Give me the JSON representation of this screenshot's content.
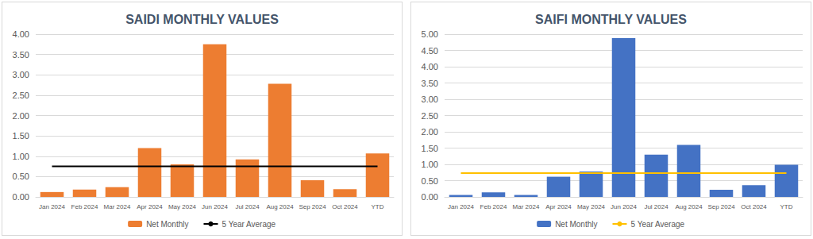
{
  "chart_data": [
    {
      "type": "bar",
      "title": "SAIDI MONTHLY VALUES",
      "categories": [
        "Jan 2024",
        "Feb 2024",
        "Mar 2024",
        "Apr 2024",
        "May 2024",
        "Jun 2024",
        "Jul 2024",
        "Aug 2024",
        "Sep 2024",
        "Oct 2024",
        "YTD"
      ],
      "series": [
        {
          "name": "Net Monthly",
          "type": "bar",
          "color": "#ed7d31",
          "values": [
            0.12,
            0.18,
            0.24,
            1.2,
            0.8,
            3.75,
            0.92,
            2.78,
            0.41,
            0.19,
            1.07
          ]
        },
        {
          "name": "5 Year Average",
          "type": "line",
          "color": "#000000",
          "values": [
            0.75,
            0.75,
            0.75,
            0.75,
            0.75,
            0.75,
            0.75,
            0.75,
            0.75,
            0.75,
            0.75
          ]
        }
      ],
      "ylim": [
        0,
        4
      ],
      "yticks": [
        {
          "value": 0,
          "label": "0.00"
        },
        {
          "value": 0.5,
          "label": "0.50"
        },
        {
          "value": 1,
          "label": "1.00"
        },
        {
          "value": 1.5,
          "label": "1.50"
        },
        {
          "value": 2,
          "label": "2.00"
        },
        {
          "value": 2.5,
          "label": "2.50"
        },
        {
          "value": 3,
          "label": "3.00"
        },
        {
          "value": 3.5,
          "label": "3.50"
        },
        {
          "value": 4,
          "label": "4.00"
        }
      ],
      "grid": true,
      "legend": "bottom"
    },
    {
      "type": "bar",
      "title": "SAIFI MONTHLY VALUES",
      "categories": [
        "Jan 2024",
        "Feb 2024",
        "Mar 2024",
        "Apr 2024",
        "May 2024",
        "Jun 2024",
        "Jul 2024",
        "Aug 2024",
        "Sep 2024",
        "Oct 2024",
        "YTD"
      ],
      "series": [
        {
          "name": "Net Monthly",
          "type": "bar",
          "color": "#4472c4",
          "values": [
            0.06,
            0.14,
            0.06,
            0.62,
            0.78,
            4.88,
            1.3,
            1.6,
            0.22,
            0.36,
            0.99
          ]
        },
        {
          "name": "5 Year Average",
          "type": "line",
          "color": "#ffc000",
          "values": [
            0.73,
            0.73,
            0.73,
            0.73,
            0.73,
            0.73,
            0.73,
            0.73,
            0.73,
            0.73,
            0.73
          ]
        }
      ],
      "ylim": [
        0,
        5
      ],
      "yticks": [
        {
          "value": 0,
          "label": "0.00"
        },
        {
          "value": 0.5,
          "label": "0.50"
        },
        {
          "value": 1,
          "label": "1.00"
        },
        {
          "value": 1.5,
          "label": "1.50"
        },
        {
          "value": 2,
          "label": "2.00"
        },
        {
          "value": 2.5,
          "label": "2.50"
        },
        {
          "value": 3,
          "label": "3.00"
        },
        {
          "value": 3.5,
          "label": "3.50"
        },
        {
          "value": 4,
          "label": "4.00"
        },
        {
          "value": 4.5,
          "label": "4.50"
        },
        {
          "value": 5,
          "label": "5.00"
        }
      ],
      "grid": true,
      "legend": "bottom"
    }
  ]
}
